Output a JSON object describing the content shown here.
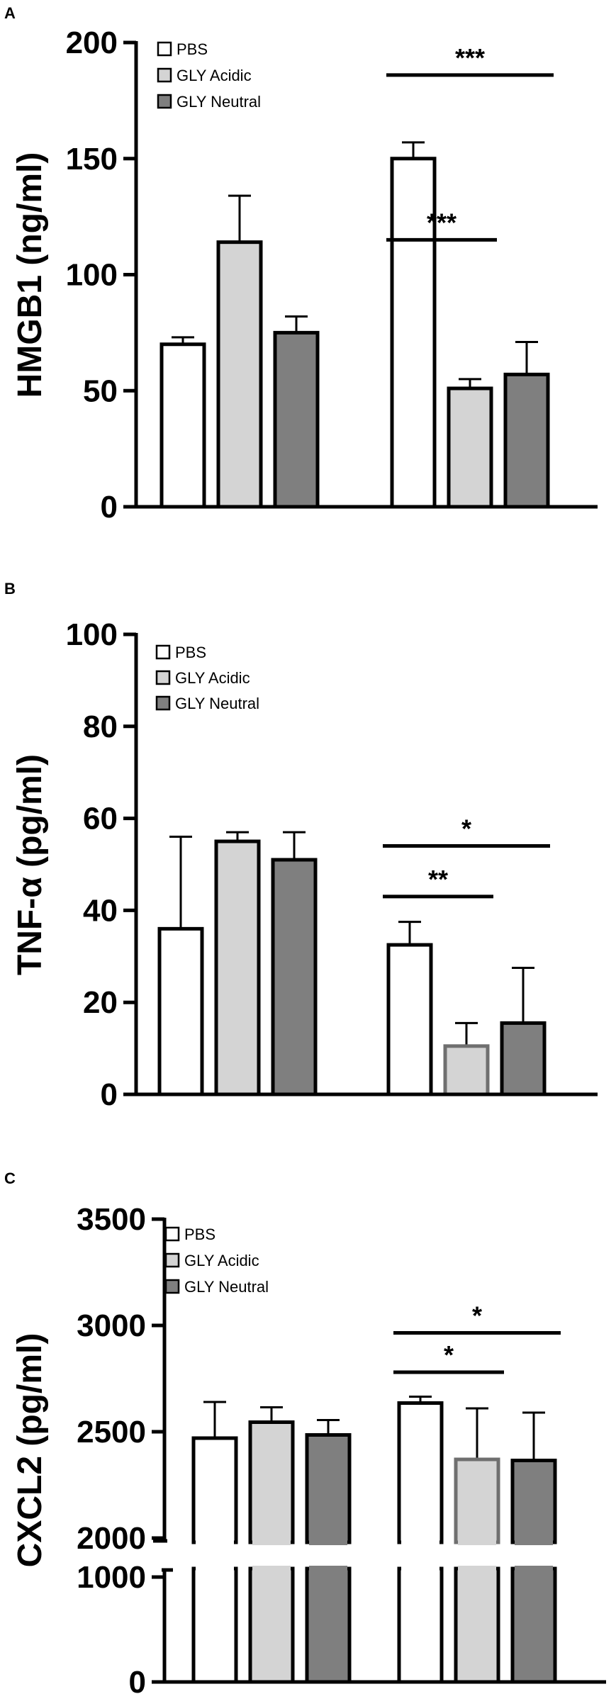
{
  "chart_data": [
    {
      "panel": "A",
      "type": "bar",
      "ylabel": "HMGB1 (ng/ml)",
      "ylim": [
        0,
        200
      ],
      "yticks": [
        0,
        50,
        100,
        150,
        200
      ],
      "legend": {
        "position": "top-left",
        "entries": [
          "PBS",
          "GLY Acidic",
          "GLY Neutral"
        ]
      },
      "groups": 2,
      "series": [
        {
          "name": "PBS",
          "color": "#ffffff",
          "values": [
            70,
            150
          ],
          "errors": [
            3,
            7
          ]
        },
        {
          "name": "GLY Acidic",
          "color": "#d4d4d4",
          "values": [
            114,
            51
          ],
          "errors": [
            20,
            4
          ]
        },
        {
          "name": "GLY Neutral",
          "color": "#7f7f7f",
          "values": [
            75,
            57
          ],
          "errors": [
            7,
            14
          ]
        }
      ],
      "significance": [
        {
          "group": 1,
          "from": 0,
          "to": 1,
          "label": "***",
          "y": 115
        },
        {
          "group": 1,
          "from": 0,
          "to": 2,
          "label": "***",
          "y": 186
        }
      ]
    },
    {
      "panel": "B",
      "type": "bar",
      "ylabel": "TNF-α (pg/ml)",
      "ylim": [
        0,
        100
      ],
      "yticks": [
        0,
        20,
        40,
        60,
        80,
        100
      ],
      "legend": {
        "position": "top-left",
        "entries": [
          "PBS",
          "GLY Acidic",
          "GLY Neutral"
        ]
      },
      "groups": 2,
      "series": [
        {
          "name": "PBS",
          "color": "#ffffff",
          "values": [
            36,
            32.5
          ],
          "errors": [
            20,
            5
          ]
        },
        {
          "name": "GLY Acidic",
          "color": "#d4d4d4",
          "values": [
            55,
            10.5
          ],
          "errors": [
            2,
            5
          ]
        },
        {
          "name": "GLY Neutral",
          "color": "#7f7f7f",
          "values": [
            51,
            15.5
          ],
          "errors": [
            6,
            12
          ]
        }
      ],
      "significance": [
        {
          "group": 1,
          "from": 0,
          "to": 1,
          "label": "**",
          "y": 43
        },
        {
          "group": 1,
          "from": 0,
          "to": 2,
          "label": "*",
          "y": 54
        }
      ]
    },
    {
      "panel": "C",
      "type": "bar",
      "ylabel": "CXCL2 (pg/ml)",
      "ylim": [
        0,
        3500
      ],
      "axis_break": [
        1000,
        2000
      ],
      "yticks": [
        0,
        1000,
        2000,
        2500,
        3000,
        3500
      ],
      "legend": {
        "position": "top-left",
        "entries": [
          "PBS",
          "GLY Acidic",
          "GLY Neutral"
        ]
      },
      "groups": 2,
      "series": [
        {
          "name": "PBS",
          "color": "#ffffff",
          "values": [
            2470,
            2635
          ],
          "errors": [
            170,
            30
          ]
        },
        {
          "name": "GLY Acidic",
          "color": "#d4d4d4",
          "values": [
            2545,
            2370
          ],
          "errors": [
            70,
            240
          ]
        },
        {
          "name": "GLY Neutral",
          "color": "#7f7f7f",
          "values": [
            2485,
            2365
          ],
          "errors": [
            70,
            225
          ]
        }
      ],
      "significance": [
        {
          "group": 1,
          "from": 0,
          "to": 1,
          "label": "*",
          "y": 2780
        },
        {
          "group": 1,
          "from": 0,
          "to": 2,
          "label": "*",
          "y": 2965
        }
      ]
    }
  ]
}
